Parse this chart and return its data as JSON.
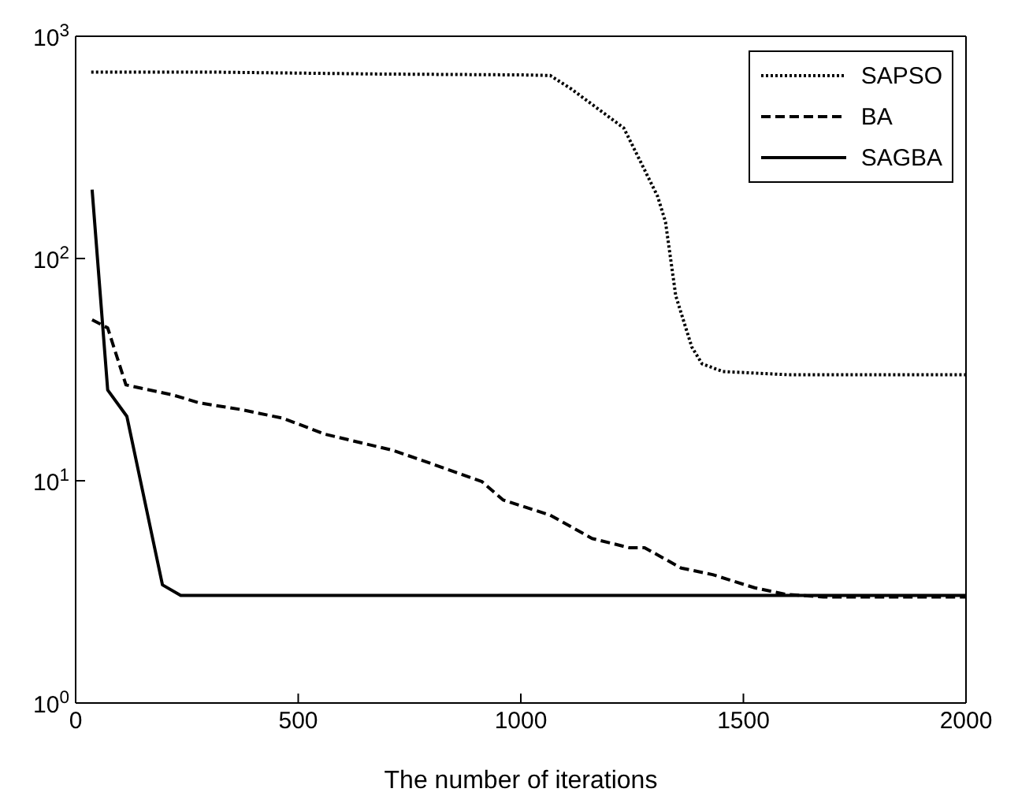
{
  "chart_data": {
    "type": "line",
    "xlabel": "The number of iterations",
    "xlim": [
      0,
      2000
    ],
    "xticks": [
      0,
      500,
      1000,
      1500,
      2000
    ],
    "ylim": [
      1,
      1000
    ],
    "yticks": [
      {
        "value": 1,
        "label": "10$^{0}$"
      },
      {
        "value": 10,
        "label": "10$^{1}$"
      },
      {
        "value": 100,
        "label": "10$^{2}$"
      },
      {
        "value": 1000,
        "label": "10$^{3}$"
      }
    ],
    "log": "y",
    "legend": "top right",
    "marker": "none",
    "series": [
      {
        "name": "SAPSO",
        "color": "#000000",
        "line_style": "dotted",
        "x": [
          35,
          300,
          688,
          1000,
          1066,
          1113,
          1231,
          1243,
          1307,
          1325,
          1348,
          1384,
          1407,
          1454,
          1600,
          2000
        ],
        "values": [
          690,
          690,
          676,
          670,
          666,
          580,
          387,
          347,
          191,
          146,
          68,
          40,
          33.6,
          31,
          30,
          30
        ]
      },
      {
        "name": "BA",
        "color": "#000000",
        "line_style": "dashed",
        "x": [
          37,
          72,
          113,
          219,
          278,
          372,
          466,
          560,
          713,
          796,
          913,
          960,
          1066,
          1160,
          1243,
          1278,
          1360,
          1431,
          1525,
          1596,
          1680,
          2000
        ],
        "values": [
          53,
          48.7,
          27,
          24.3,
          22.4,
          20.9,
          19.1,
          16.2,
          13.7,
          12,
          9.9,
          8.2,
          7,
          5.5,
          5,
          5,
          4.05,
          3.78,
          3.3,
          3.08,
          3,
          3
        ]
      },
      {
        "name": "SAGBA",
        "color": "#000000",
        "line_style": "solid",
        "x": [
          37,
          72,
          115,
          195,
          236,
          2000
        ],
        "values": [
          204,
          25.6,
          19.5,
          3.4,
          3.05,
          3.05
        ]
      }
    ]
  }
}
